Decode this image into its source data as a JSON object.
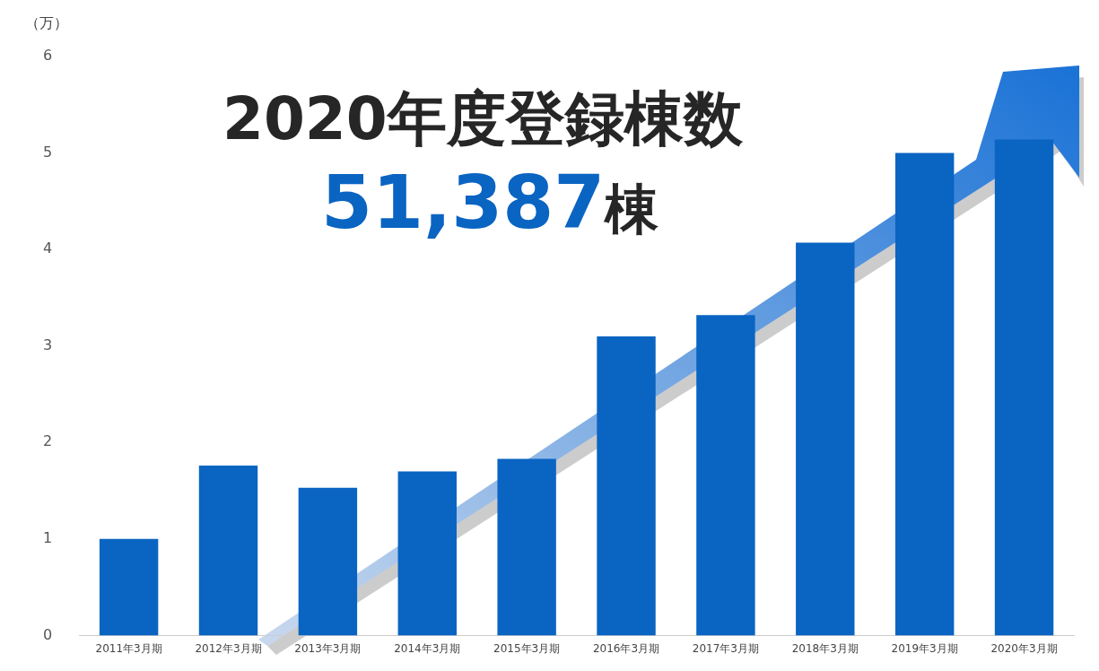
{
  "chart_data": {
    "type": "bar",
    "title": "2020年度登録棟数",
    "ylabel": "（万）",
    "annotations": [
      "51,387棟"
    ],
    "categories": [
      "2011年3月期",
      "2012年3月期",
      "2013年3月期",
      "2014年3月期",
      "2015年3月期",
      "2016年3月期",
      "2017年3月期",
      "2018年3月期",
      "2019年3月期",
      "2020年3月期"
    ],
    "values": [
      1.0,
      1.76,
      1.53,
      1.7,
      1.83,
      3.1,
      3.32,
      4.07,
      5.0,
      5.14
    ],
    "color": "#0a64c2",
    "ylim": [
      0,
      6
    ],
    "yticks": [
      0,
      1,
      2,
      3,
      4,
      5,
      6
    ],
    "grid": false,
    "legend": false
  }
}
